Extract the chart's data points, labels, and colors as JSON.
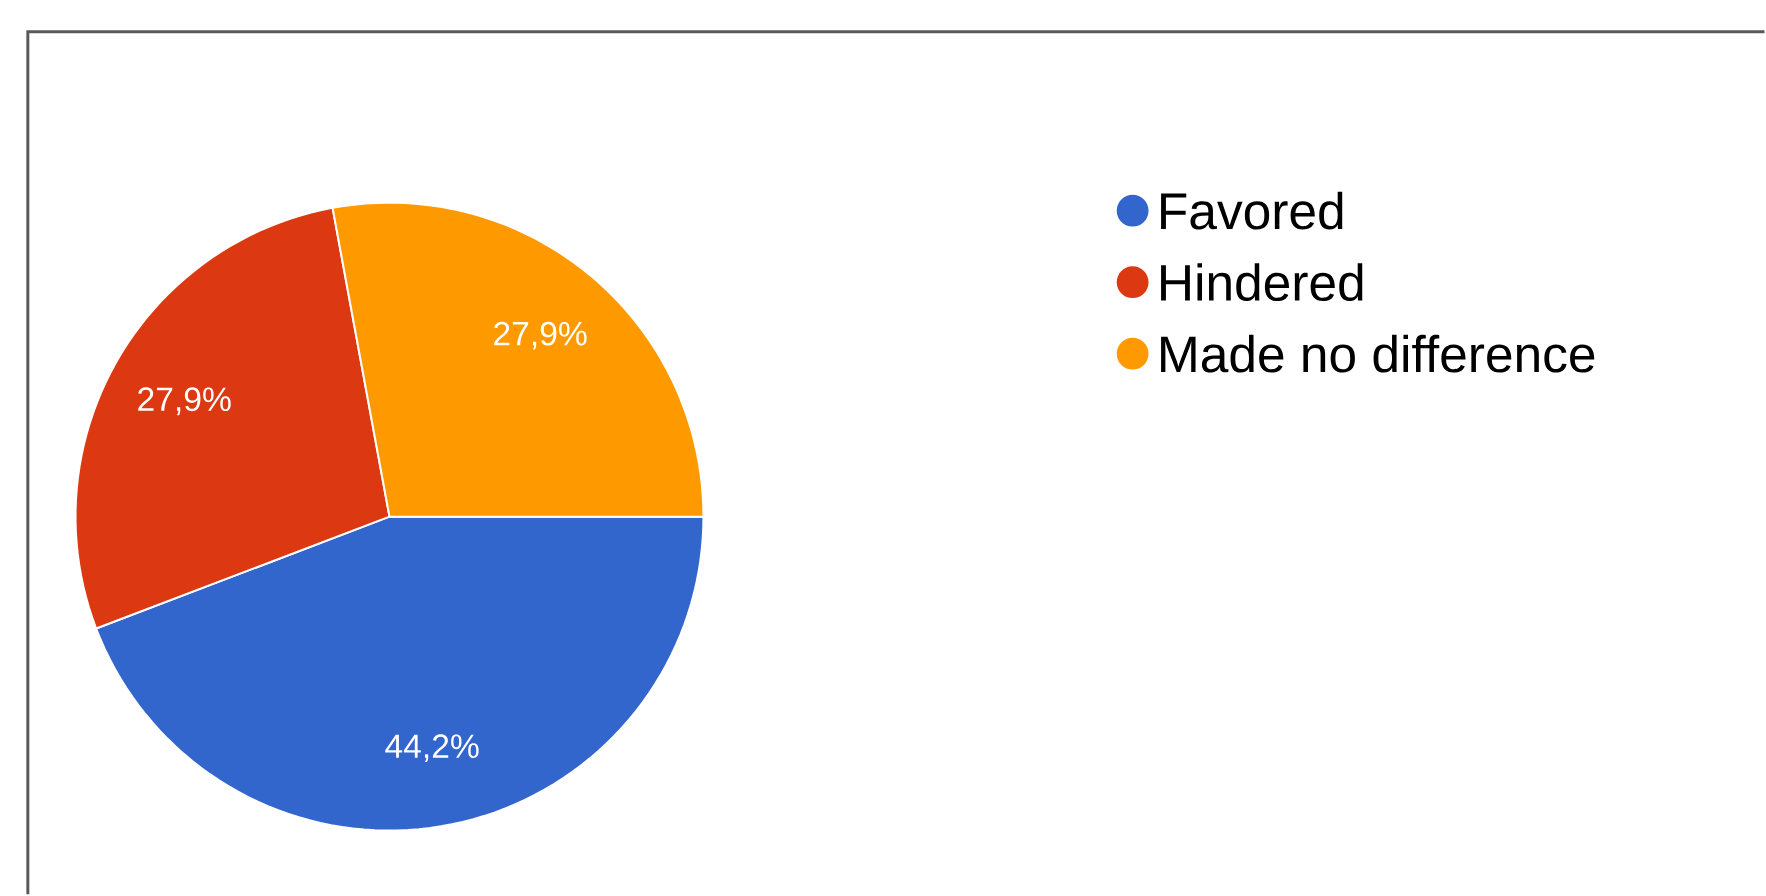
{
  "chart_data": {
    "type": "pie",
    "categories": [
      "Favored",
      "Hindered",
      "Made no difference"
    ],
    "values": [
      44.2,
      27.9,
      27.9
    ],
    "value_labels": [
      "44,2%",
      "27,9%",
      "27,9%"
    ],
    "colors": [
      "#3366cc",
      "#dc3912",
      "#ff9900"
    ],
    "legend": "right"
  }
}
